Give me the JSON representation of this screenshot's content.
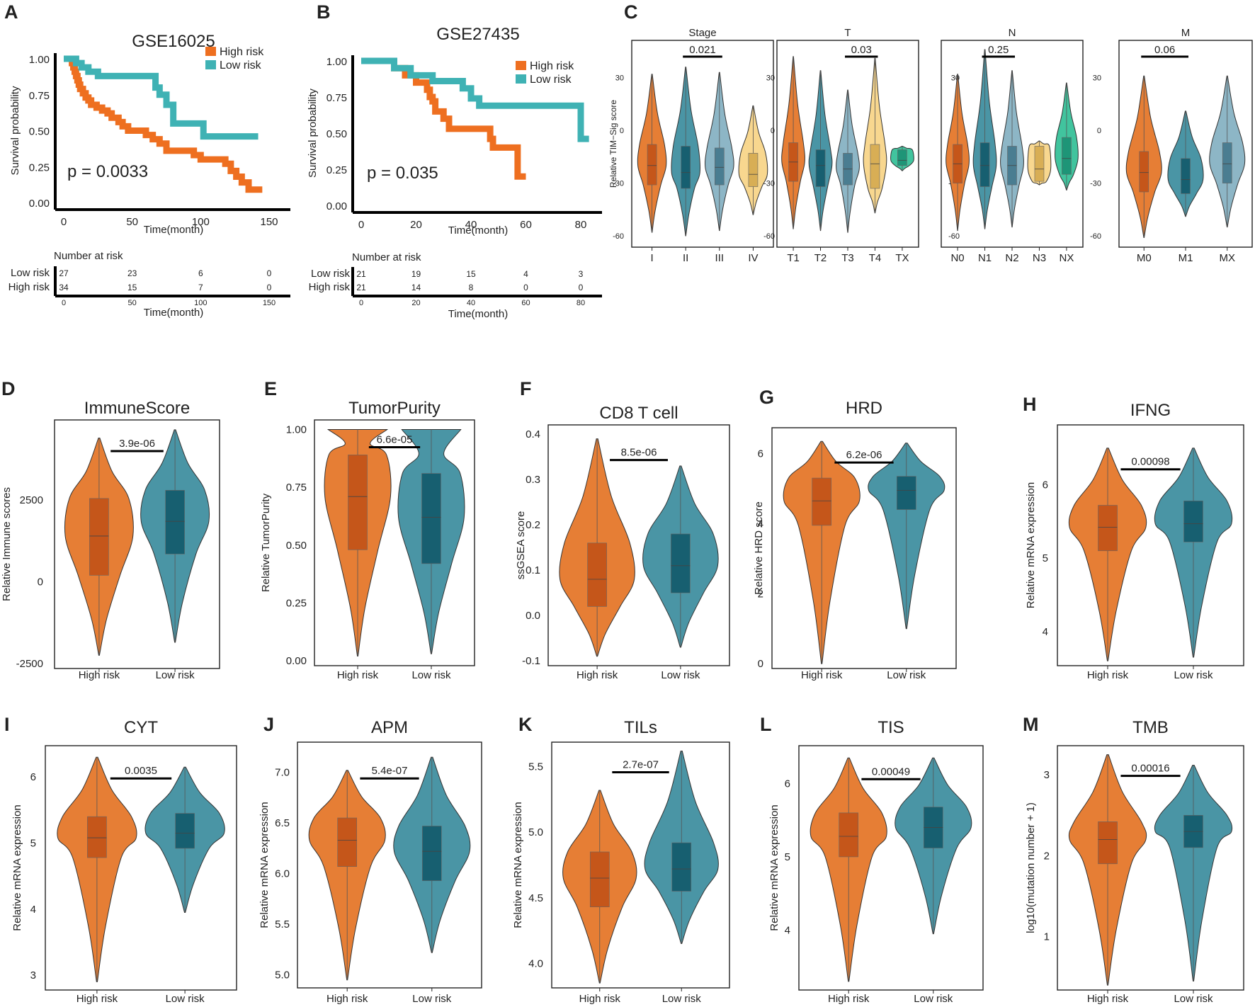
{
  "palette": {
    "high": "#E67E35",
    "high_box": "#C5561A",
    "low": "#4A95A5",
    "low_box": "#175F70",
    "km_high": "#EE6F20",
    "km_low": "#3FB2B4",
    "c3": "#8DB6C6",
    "c3_box": "#4A7D91",
    "c4": "#F8D78F",
    "c4_box": "#D8AE55",
    "c5": "#41C49E",
    "c5_box": "#1E9577"
  },
  "chart_data": [
    {
      "type": "km",
      "panel": "A",
      "title": "GSE16025",
      "ylabel": "Survival probability",
      "xlabel": "Time(month)",
      "yticks": [
        "0.00",
        "0.25",
        "0.50",
        "0.75",
        "1.00"
      ],
      "xticks": [
        "0",
        "50",
        "100",
        "150"
      ],
      "xmax": 150,
      "pvalue": "p = 0.0033",
      "legend": [
        "High risk",
        "Low risk"
      ],
      "curves": {
        "high": [
          [
            0,
            1
          ],
          [
            5,
            1
          ],
          [
            6,
            0.97
          ],
          [
            7,
            0.94
          ],
          [
            8,
            0.91
          ],
          [
            9,
            0.88
          ],
          [
            10,
            0.85
          ],
          [
            11,
            0.82
          ],
          [
            12,
            0.79
          ],
          [
            14,
            0.76
          ],
          [
            16,
            0.73
          ],
          [
            18,
            0.71
          ],
          [
            20,
            0.68
          ],
          [
            24,
            0.66
          ],
          [
            28,
            0.64
          ],
          [
            32,
            0.62
          ],
          [
            35,
            0.59
          ],
          [
            40,
            0.56
          ],
          [
            43,
            0.53
          ],
          [
            47,
            0.5
          ],
          [
            60,
            0.47
          ],
          [
            65,
            0.44
          ],
          [
            70,
            0.41
          ],
          [
            75,
            0.36
          ],
          [
            95,
            0.33
          ],
          [
            100,
            0.3
          ],
          [
            118,
            0.27
          ],
          [
            122,
            0.22
          ],
          [
            126,
            0.18
          ],
          [
            130,
            0.14
          ],
          [
            135,
            0.09
          ],
          [
            145,
            0.09
          ]
        ],
        "low": [
          [
            0,
            1
          ],
          [
            7,
            1
          ],
          [
            9,
            0.97
          ],
          [
            13,
            0.94
          ],
          [
            18,
            0.91
          ],
          [
            25,
            0.88
          ],
          [
            65,
            0.88
          ],
          [
            67,
            0.8
          ],
          [
            70,
            0.75
          ],
          [
            75,
            0.68
          ],
          [
            80,
            0.55
          ],
          [
            100,
            0.55
          ],
          [
            102,
            0.46
          ],
          [
            142,
            0.46
          ]
        ]
      },
      "risk_table": {
        "title": "Number at risk",
        "xlabel": "Time(month)",
        "rows": [
          {
            "label": "Low risk",
            "values": [
              "27",
              "23",
              "6",
              "0"
            ]
          },
          {
            "label": "High risk",
            "values": [
              "34",
              "15",
              "7",
              "0"
            ]
          }
        ]
      }
    },
    {
      "type": "km",
      "panel": "B",
      "title": "GSE27435",
      "ylabel": "Survival probability",
      "xlabel": "Time(month)",
      "yticks": [
        "0.00",
        "0.25",
        "0.50",
        "0.75",
        "1.00"
      ],
      "xticks": [
        "0",
        "20",
        "40",
        "60",
        "80"
      ],
      "xmax": 80,
      "pvalue": "p = 0.035",
      "legend": [
        "High risk",
        "Low risk"
      ],
      "curves": {
        "high": [
          [
            0,
            1
          ],
          [
            10,
            1
          ],
          [
            12,
            0.95
          ],
          [
            16,
            0.9
          ],
          [
            20,
            0.85
          ],
          [
            24,
            0.8
          ],
          [
            25,
            0.75
          ],
          [
            26,
            0.72
          ],
          [
            27,
            0.65
          ],
          [
            30,
            0.6
          ],
          [
            32,
            0.53
          ],
          [
            45,
            0.53
          ],
          [
            47,
            0.46
          ],
          [
            48,
            0.4
          ],
          [
            56,
            0.4
          ],
          [
            57,
            0.2
          ],
          [
            60,
            0.2
          ]
        ],
        "low": [
          [
            0,
            1
          ],
          [
            10,
            1
          ],
          [
            12,
            0.95
          ],
          [
            18,
            0.9
          ],
          [
            26,
            0.86
          ],
          [
            37,
            0.81
          ],
          [
            40,
            0.74
          ],
          [
            43,
            0.69
          ],
          [
            79,
            0.69
          ],
          [
            80,
            0.46
          ],
          [
            83,
            0.46
          ]
        ]
      },
      "risk_table": {
        "title": "Number at risk",
        "xlabel": "Time(month)",
        "rows": [
          {
            "label": "Low risk",
            "values": [
              "21",
              "19",
              "15",
              "4",
              "3"
            ]
          },
          {
            "label": "High risk",
            "values": [
              "21",
              "14",
              "8",
              "0",
              "0"
            ]
          }
        ]
      }
    },
    {
      "type": "violin_group",
      "panel": "C",
      "ylabel": "Relative TIM−Sig score",
      "ylim": [
        -62,
        46
      ],
      "yticks": [
        "30",
        "0",
        "-30",
        "-60"
      ],
      "facets": [
        {
          "title": "Stage",
          "categories": [
            "I",
            "II",
            "III",
            "IV"
          ],
          "colors": [
            "high",
            "low",
            "c3",
            "c4"
          ],
          "p": {
            "text": "0.021",
            "from": 1,
            "to": 2
          },
          "violins": [
            {
              "min": -58,
              "q1": -31,
              "med": -20,
              "q3": -8,
              "max": 32
            },
            {
              "min": -60,
              "q1": -33,
              "med": -24,
              "q3": -9,
              "max": 36
            },
            {
              "min": -57,
              "q1": -31,
              "med": -21,
              "q3": -10,
              "max": 33
            },
            {
              "min": -48,
              "q1": -32,
              "med": -25,
              "q3": -13,
              "max": 14
            }
          ]
        },
        {
          "title": "T",
          "categories": [
            "T1",
            "T2",
            "T3",
            "T4",
            "TX"
          ],
          "colors": [
            "high",
            "low",
            "c3",
            "c4",
            "c5"
          ],
          "p": {
            "text": "0.03",
            "from": 2,
            "to": 3
          },
          "violins": [
            {
              "min": -56,
              "q1": -29,
              "med": -18,
              "q3": -7,
              "max": 42
            },
            {
              "min": -57,
              "q1": -32,
              "med": -20,
              "q3": -11,
              "max": 34
            },
            {
              "min": -58,
              "q1": -31,
              "med": -22,
              "q3": -13,
              "max": 23
            },
            {
              "min": -47,
              "q1": -33,
              "med": -19,
              "q3": -8,
              "max": 41
            },
            {
              "min": -23,
              "q1": -20,
              "med": -17,
              "q3": -11,
              "max": -9
            }
          ]
        },
        {
          "title": "N",
          "categories": [
            "N0",
            "N1",
            "N2",
            "N3",
            "NX"
          ],
          "colors": [
            "high",
            "low",
            "c3",
            "c4",
            "c5"
          ],
          "p": {
            "text": "0.25",
            "from": 1,
            "to": 2
          },
          "violins": [
            {
              "min": -57,
              "q1": -30,
              "med": -19,
              "q3": -8,
              "max": 32
            },
            {
              "min": -56,
              "q1": -32,
              "med": -20,
              "q3": -7,
              "max": 46
            },
            {
              "min": -55,
              "q1": -31,
              "med": -20,
              "q3": -9,
              "max": 34
            },
            {
              "min": -31,
              "q1": -29,
              "med": -22,
              "q3": -9,
              "max": -6
            },
            {
              "min": -34,
              "q1": -25,
              "med": -16,
              "q3": -4,
              "max": 27
            }
          ]
        },
        {
          "title": "M",
          "categories": [
            "M0",
            "M1",
            "MX"
          ],
          "colors": [
            "high",
            "low",
            "c3"
          ],
          "p": {
            "text": "0.06",
            "from": 0,
            "to": 1
          },
          "violins": [
            {
              "min": -61,
              "q1": -35,
              "med": -24,
              "q3": -12,
              "max": 31
            },
            {
              "min": -49,
              "q1": -36,
              "med": -28,
              "q3": -16,
              "max": 11
            },
            {
              "min": -55,
              "q1": -30,
              "med": -19,
              "q3": -7,
              "max": 31
            }
          ]
        }
      ]
    },
    {
      "type": "violin",
      "panel": "D",
      "title": "ImmuneScore",
      "ylabel": "Relative Immune scores",
      "categories": [
        "High risk",
        "Low risk"
      ],
      "ylim": [
        -2500,
        4800
      ],
      "yticks": [
        -2500,
        0,
        2500
      ],
      "yfmt": 0,
      "pvalue": "3.9e-06",
      "flat_top": false,
      "violins": [
        {
          "min": -2250,
          "q1": 200,
          "med": 1400,
          "q3": 2550,
          "max": 4400
        },
        {
          "min": -1850,
          "q1": 850,
          "med": 1850,
          "q3": 2800,
          "max": 4650
        }
      ]
    },
    {
      "type": "violin",
      "panel": "E",
      "title": "TumorPurity",
      "ylabel": "Relative TumorPurity",
      "categories": [
        "High risk",
        "Low risk"
      ],
      "ylim": [
        0,
        1.02
      ],
      "yticks": [
        0,
        0.25,
        0.5,
        0.75,
        1
      ],
      "yfmt": 2,
      "pvalue": "6.6e-05",
      "flat_top": true,
      "violins": [
        {
          "min": 0.02,
          "q1": 0.48,
          "med": 0.71,
          "q3": 0.89,
          "max": 1
        },
        {
          "min": 0.03,
          "q1": 0.42,
          "med": 0.62,
          "q3": 0.81,
          "max": 1
        }
      ]
    },
    {
      "type": "violin",
      "panel": "F",
      "title": "CD8 T cell",
      "ylabel": "ssGSEA score",
      "categories": [
        "High risk",
        "Low risk"
      ],
      "ylim": [
        -0.1,
        0.41
      ],
      "yticks": [
        -0.1,
        0,
        0.1,
        0.2,
        0.3,
        0.4
      ],
      "yfmt": 1,
      "pvalue": "8.5e-06",
      "flat_top": false,
      "violins": [
        {
          "min": -0.09,
          "q1": 0.02,
          "med": 0.08,
          "q3": 0.16,
          "max": 0.39
        },
        {
          "min": -0.07,
          "q1": 0.05,
          "med": 0.11,
          "q3": 0.18,
          "max": 0.33
        }
      ]
    },
    {
      "type": "violin",
      "panel": "G",
      "title": "HRD",
      "ylabel": "Relative HRD score",
      "categories": [
        "High risk",
        "Low risk"
      ],
      "ylim": [
        0,
        6.6
      ],
      "yticks": [
        0,
        2,
        4,
        6
      ],
      "yfmt": 0,
      "pvalue": "6.2e-06",
      "flat_top": false,
      "violins": [
        {
          "min": 0,
          "q1": 3.95,
          "med": 4.65,
          "q3": 5.3,
          "max": 6.35
        },
        {
          "min": 1,
          "q1": 4.4,
          "med": 4.95,
          "q3": 5.35,
          "max": 6.3
        }
      ]
    },
    {
      "type": "violin",
      "panel": "H",
      "title": "IFNG",
      "ylabel": "Relative mRNA expression",
      "categories": [
        "High risk",
        "Low risk"
      ],
      "ylim": [
        3.6,
        6.75
      ],
      "yticks": [
        4,
        5,
        6
      ],
      "yfmt": 0,
      "pvalue": "0.00098",
      "flat_top": false,
      "violins": [
        {
          "min": 3.6,
          "q1": 5.1,
          "med": 5.42,
          "q3": 5.72,
          "max": 6.5
        },
        {
          "min": 3.65,
          "q1": 5.22,
          "med": 5.47,
          "q3": 5.78,
          "max": 6.5
        }
      ]
    },
    {
      "type": "violin",
      "panel": "I",
      "title": "CYT",
      "ylabel": "Relative mRNA expression",
      "categories": [
        "High risk",
        "Low risk"
      ],
      "ylim": [
        2.85,
        6.4
      ],
      "yticks": [
        3,
        4,
        5,
        6
      ],
      "yfmt": 0,
      "pvalue": "0.0035",
      "flat_top": false,
      "violins": [
        {
          "min": 2.9,
          "q1": 4.78,
          "med": 5.08,
          "q3": 5.4,
          "max": 6.3
        },
        {
          "min": 3.95,
          "q1": 4.92,
          "med": 5.15,
          "q3": 5.45,
          "max": 6.15
        }
      ]
    },
    {
      "type": "violin",
      "panel": "J",
      "title": "APM",
      "ylabel": "Relative mRNA expression",
      "categories": [
        "High risk",
        "Low risk"
      ],
      "ylim": [
        4.92,
        7.25
      ],
      "yticks": [
        5,
        5.5,
        6,
        6.5,
        7
      ],
      "yfmt": 1,
      "pvalue": "5.4e-07",
      "flat_top": false,
      "violins": [
        {
          "min": 4.95,
          "q1": 6.07,
          "med": 6.33,
          "q3": 6.55,
          "max": 7.02
        },
        {
          "min": 5.22,
          "q1": 5.93,
          "med": 6.22,
          "q3": 6.47,
          "max": 7.15
        }
      ]
    },
    {
      "type": "violin",
      "panel": "K",
      "title": "TILs",
      "ylabel": "Relative mRNA expression",
      "categories": [
        "High risk",
        "Low risk"
      ],
      "ylim": [
        3.85,
        5.65
      ],
      "yticks": [
        4,
        4.5,
        5,
        5.5
      ],
      "yfmt": 1,
      "pvalue": "2.7e-07",
      "flat_top": false,
      "violins": [
        {
          "min": 3.85,
          "q1": 4.43,
          "med": 4.65,
          "q3": 4.85,
          "max": 5.32
        },
        {
          "min": 4.15,
          "q1": 4.55,
          "med": 4.72,
          "q3": 4.92,
          "max": 5.62
        }
      ]
    },
    {
      "type": "violin",
      "panel": "L",
      "title": "TIS",
      "ylabel": "Relative mRNA expression",
      "categories": [
        "High risk",
        "Low risk"
      ],
      "ylim": [
        3.25,
        6.45
      ],
      "yticks": [
        4,
        5,
        6
      ],
      "yfmt": 0,
      "pvalue": "0.00049",
      "flat_top": false,
      "violins": [
        {
          "min": 3.3,
          "q1": 5.0,
          "med": 5.28,
          "q3": 5.6,
          "max": 6.35
        },
        {
          "min": 3.95,
          "q1": 5.12,
          "med": 5.4,
          "q3": 5.68,
          "max": 6.35
        }
      ]
    },
    {
      "type": "violin",
      "panel": "M",
      "title": "TMB",
      "ylabel": "log10(mutation number + 1)",
      "categories": [
        "High risk",
        "Low risk"
      ],
      "ylim": [
        0.4,
        3.3
      ],
      "yticks": [
        1,
        2,
        3
      ],
      "yfmt": 0,
      "pvalue": "0.00016",
      "flat_top": false,
      "violins": [
        {
          "min": 0.4,
          "q1": 1.9,
          "med": 2.2,
          "q3": 2.42,
          "max": 3.25
        },
        {
          "min": 0.45,
          "q1": 2.1,
          "med": 2.3,
          "q3": 2.5,
          "max": 3.12
        }
      ]
    }
  ]
}
